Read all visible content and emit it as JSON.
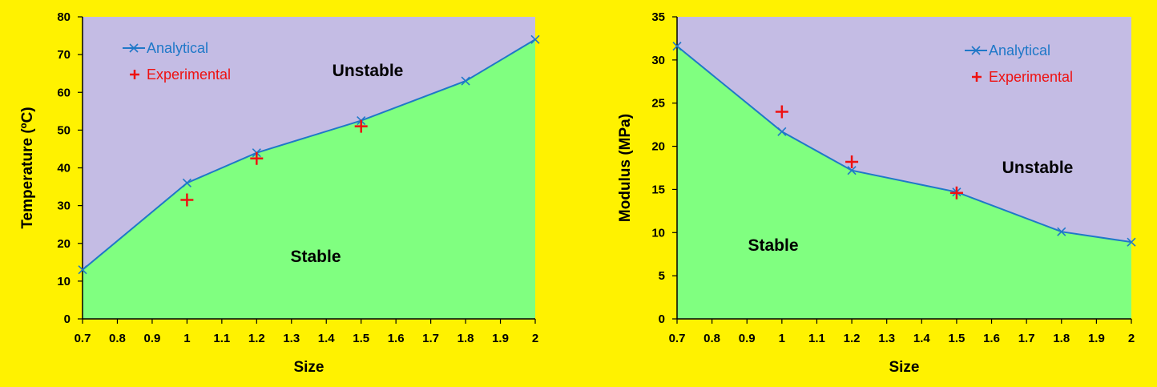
{
  "colors": {
    "background": "#FFF200",
    "stable_region": "#80FF80",
    "unstable_region": "#C4BCE4",
    "analytical": "#1F78C8",
    "experimental": "#EE1111"
  },
  "chart_data": [
    {
      "type": "area",
      "xlabel": "Size",
      "ylabel": "Temperature (ºC)",
      "xlim": [
        0.7,
        2.0
      ],
      "ylim": [
        0,
        80
      ],
      "x_ticks": [
        "0.7",
        "0.8",
        "0.9",
        "1",
        "1.1",
        "1.2",
        "1.3",
        "1.4",
        "1.5",
        "1.6",
        "1.7",
        "1.8",
        "1.9",
        "2"
      ],
      "y_ticks": [
        "0",
        "10",
        "20",
        "30",
        "40",
        "50",
        "60",
        "70",
        "80"
      ],
      "grid": false,
      "legend": {
        "placement": "top-left",
        "analytical_label": "Analytical",
        "experimental_label": "Experimental"
      },
      "regions": {
        "above": "Unstable",
        "below": "Stable"
      },
      "series": [
        {
          "name": "Analytical",
          "marker": "x",
          "line": true,
          "x": [
            0.7,
            1.0,
            1.2,
            1.5,
            1.8,
            2.0
          ],
          "y": [
            13,
            36,
            44,
            52.5,
            63,
            74
          ]
        },
        {
          "name": "Experimental",
          "marker": "+",
          "line": false,
          "x": [
            1.0,
            1.2,
            1.5
          ],
          "y": [
            31.5,
            42.5,
            51
          ]
        }
      ]
    },
    {
      "type": "area",
      "xlabel": "Size",
      "ylabel": "Modulus (MPa)",
      "xlim": [
        0.7,
        2.0
      ],
      "ylim": [
        0,
        35
      ],
      "x_ticks": [
        "0.7",
        "0.8",
        "0.9",
        "1",
        "1.1",
        "1.2",
        "1.3",
        "1.4",
        "1.5",
        "1.6",
        "1.7",
        "1.8",
        "1.9",
        "2"
      ],
      "y_ticks": [
        "0",
        "5",
        "10",
        "15",
        "20",
        "25",
        "30",
        "35"
      ],
      "grid": false,
      "legend": {
        "placement": "top-right",
        "analytical_label": "Analytical",
        "experimental_label": "Experimental"
      },
      "regions": {
        "above": "Unstable",
        "below": "Stable"
      },
      "series": [
        {
          "name": "Analytical",
          "marker": "x",
          "line": true,
          "x": [
            0.7,
            1.0,
            1.2,
            1.5,
            1.8,
            2.0
          ],
          "y": [
            31.6,
            21.7,
            17.2,
            14.7,
            10.1,
            8.9
          ]
        },
        {
          "name": "Experimental",
          "marker": "+",
          "line": false,
          "x": [
            1.0,
            1.2,
            1.5
          ],
          "y": [
            24.0,
            18.2,
            14.6
          ]
        }
      ]
    }
  ]
}
